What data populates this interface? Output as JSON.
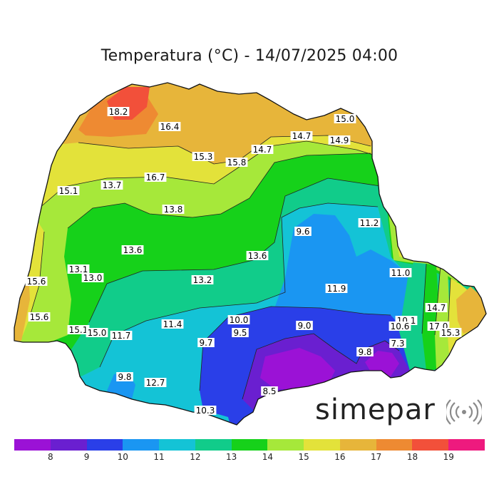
{
  "title": "Temperatura (°C) - 14/07/2025 04:00",
  "logo_text": "simepar",
  "logo_icon": "signal-waves-icon",
  "legend": {
    "colors": [
      "#9b12d6",
      "#6a1fd0",
      "#2a3fe8",
      "#1a96f2",
      "#14c3d6",
      "#11cc8a",
      "#16d11a",
      "#a6e83a",
      "#e3e23a",
      "#e7b53a",
      "#ee8a32",
      "#f2503a",
      "#ee1a7e"
    ],
    "ticks": [
      8,
      9,
      10,
      11,
      12,
      13,
      14,
      15,
      16,
      17,
      18,
      19
    ]
  },
  "stations": [
    {
      "text": "18.2"
    },
    {
      "text": "16.4"
    },
    {
      "text": "15.3"
    },
    {
      "text": "15.8"
    },
    {
      "text": "14.7"
    },
    {
      "text": "14.7"
    },
    {
      "text": "15.0"
    },
    {
      "text": "14.9"
    },
    {
      "text": "16.7"
    },
    {
      "text": "13.7"
    },
    {
      "text": "15.1"
    },
    {
      "text": "13.8"
    },
    {
      "text": "9.6"
    },
    {
      "text": "11.2"
    },
    {
      "text": "13.6"
    },
    {
      "text": "13.6"
    },
    {
      "text": "13.1"
    },
    {
      "text": "13.0"
    },
    {
      "text": "15.6"
    },
    {
      "text": "13.2"
    },
    {
      "text": "11.0"
    },
    {
      "text": "11.9"
    },
    {
      "text": "15.6"
    },
    {
      "text": "15.1"
    },
    {
      "text": "15.0"
    },
    {
      "text": "11.7"
    },
    {
      "text": "11.4"
    },
    {
      "text": "10.0"
    },
    {
      "text": "9.5"
    },
    {
      "text": "9.7"
    },
    {
      "text": "9.0"
    },
    {
      "text": "10.1"
    },
    {
      "text": "10.6"
    },
    {
      "text": "14.7"
    },
    {
      "text": "17.0"
    },
    {
      "text": "15.3"
    },
    {
      "text": "7.3"
    },
    {
      "text": "9.8"
    },
    {
      "text": "9.8"
    },
    {
      "text": "12.7"
    },
    {
      "text": "8.5"
    },
    {
      "text": "10.3"
    }
  ]
}
